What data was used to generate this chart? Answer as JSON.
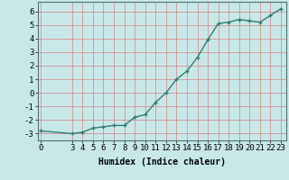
{
  "x": [
    0,
    3,
    4,
    5,
    6,
    7,
    8,
    9,
    10,
    11,
    12,
    13,
    14,
    15,
    16,
    17,
    18,
    19,
    20,
    21,
    22,
    23
  ],
  "y": [
    -2.8,
    -3.0,
    -2.9,
    -2.6,
    -2.5,
    -2.4,
    -2.4,
    -1.8,
    -1.6,
    -0.7,
    0.0,
    1.0,
    1.6,
    2.6,
    3.9,
    5.1,
    5.2,
    5.4,
    5.3,
    5.2,
    5.7,
    6.2
  ],
  "line_color": "#2e7d6e",
  "marker": "+",
  "marker_size": 3,
  "bg_color": "#c8e8e8",
  "grid_color": "#d88080",
  "xlabel": "Humidex (Indice chaleur)",
  "xlabel_fontsize": 7,
  "xlabel_fontweight": "bold",
  "xticks": [
    0,
    3,
    4,
    5,
    6,
    7,
    8,
    9,
    10,
    11,
    12,
    13,
    14,
    15,
    16,
    17,
    18,
    19,
    20,
    21,
    22,
    23
  ],
  "yticks": [
    -3,
    -2,
    -1,
    0,
    1,
    2,
    3,
    4,
    5,
    6
  ],
  "ylim": [
    -3.5,
    6.7
  ],
  "xlim": [
    -0.3,
    23.5
  ],
  "tick_fontsize": 6.5,
  "linewidth": 1.0
}
